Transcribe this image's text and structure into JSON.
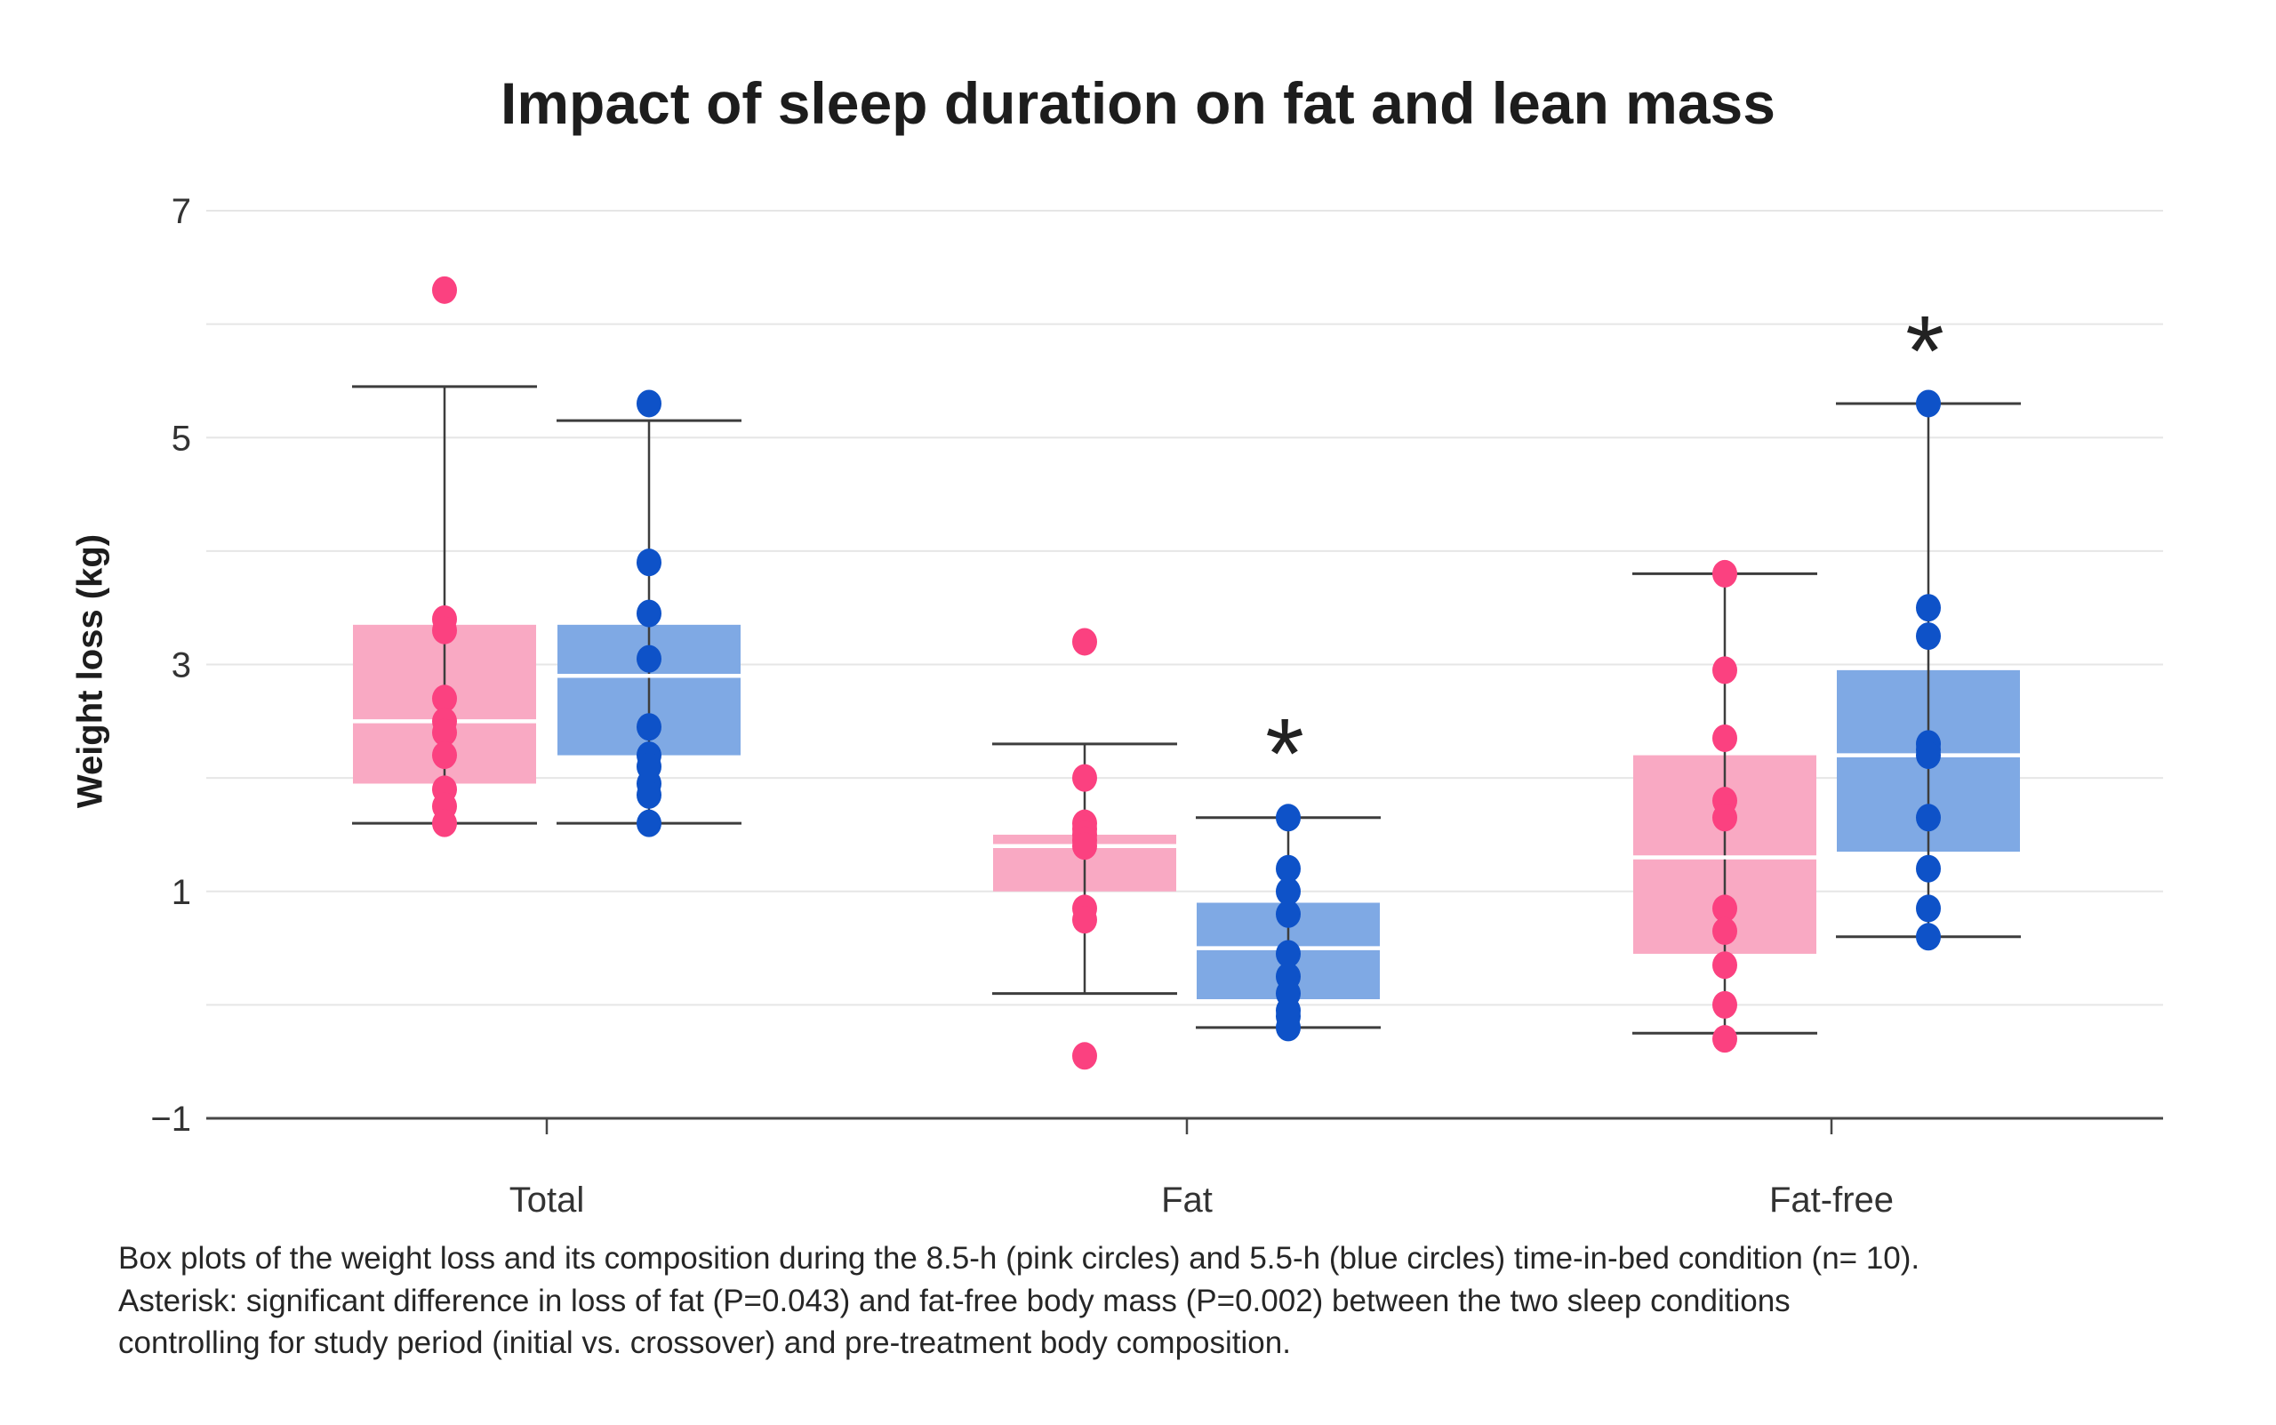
{
  "chart_data": {
    "type": "boxplot-scatter",
    "title": "Impact of sleep duration on fat and lean mass",
    "ylabel": "Weight loss (kg)",
    "ylim": [
      -1,
      7
    ],
    "gridline_step": 1,
    "legend_note": "pink = 8.5-h time-in-bed, blue = 5.5-h time-in-bed",
    "yticks": [
      {
        "value": 7,
        "label": "7"
      },
      {
        "value": 5,
        "label": "5"
      },
      {
        "value": 3,
        "label": "3"
      },
      {
        "value": 1,
        "label": "1"
      },
      {
        "value": -1,
        "label": "-1"
      }
    ],
    "colors": {
      "pink_dot": "#FB4180",
      "pink_box": "#F9A9C3",
      "blue_dot": "#0E52C8",
      "blue_box": "#7FA9E4",
      "gridline": "#E6E6E6",
      "axis_line": "#474747",
      "whisker": "#3D3D3D",
      "median": "#FFFFFF",
      "label_text": "#333333",
      "asterisk": "#222222"
    },
    "groups": [
      {
        "label": "Total",
        "asterisk": null,
        "pink": {
          "box": {
            "whisker_low": 1.6,
            "q1": 1.95,
            "median": 2.5,
            "q3": 3.35,
            "whisker_high": 5.45
          },
          "points": [
            6.3,
            3.4,
            3.3,
            2.7,
            2.5,
            2.4,
            2.2,
            1.9,
            1.75,
            1.6
          ]
        },
        "blue": {
          "box": {
            "whisker_low": 1.6,
            "q1": 2.2,
            "median": 2.9,
            "q3": 3.35,
            "whisker_high": 5.15
          },
          "points": [
            5.3,
            3.9,
            3.45,
            3.05,
            2.45,
            2.2,
            2.1,
            1.95,
            1.85,
            1.6
          ]
        }
      },
      {
        "label": "Fat",
        "asterisk": {
          "value": 2.55
        },
        "pink": {
          "box": {
            "whisker_low": 0.1,
            "q1": 1.0,
            "median": 1.4,
            "q3": 1.5,
            "whisker_high": 2.3
          },
          "points": [
            3.2,
            2.0,
            1.6,
            1.55,
            1.5,
            1.45,
            1.4,
            0.85,
            0.75,
            -0.45
          ]
        },
        "blue": {
          "box": {
            "whisker_low": -0.2,
            "q1": 0.05,
            "median": 0.5,
            "q3": 0.9,
            "whisker_high": 1.65
          },
          "points": [
            1.65,
            1.2,
            1.0,
            0.8,
            0.45,
            0.25,
            0.1,
            -0.05,
            -0.1,
            -0.2
          ]
        }
      },
      {
        "label": "Fat-free",
        "asterisk": {
          "value": 6.1
        },
        "pink": {
          "box": {
            "whisker_low": -0.25,
            "q1": 0.45,
            "median": 1.3,
            "q3": 2.2,
            "whisker_high": 3.8
          },
          "points": [
            3.8,
            2.95,
            2.35,
            1.8,
            1.65,
            0.85,
            0.65,
            0.35,
            0.0,
            -0.3
          ]
        },
        "blue": {
          "box": {
            "whisker_low": 0.6,
            "q1": 1.35,
            "median": 2.2,
            "q3": 2.95,
            "whisker_high": 5.3
          },
          "points": [
            5.3,
            3.5,
            3.25,
            2.3,
            2.25,
            2.2,
            1.65,
            1.2,
            0.85,
            0.6
          ]
        }
      }
    ]
  },
  "caption": {
    "line1": "Box plots of the weight loss and its composition during the 8.5-h (pink circles) and 5.5-h (blue circles) time-in-bed condition (n= 10).",
    "line2": "Asterisk: significant difference in loss of fat (P=0.043) and fat-free body mass (P=0.002) between the two sleep conditions",
    "line3": "controlling for study period (initial vs. crossover) and pre-treatment body composition."
  }
}
